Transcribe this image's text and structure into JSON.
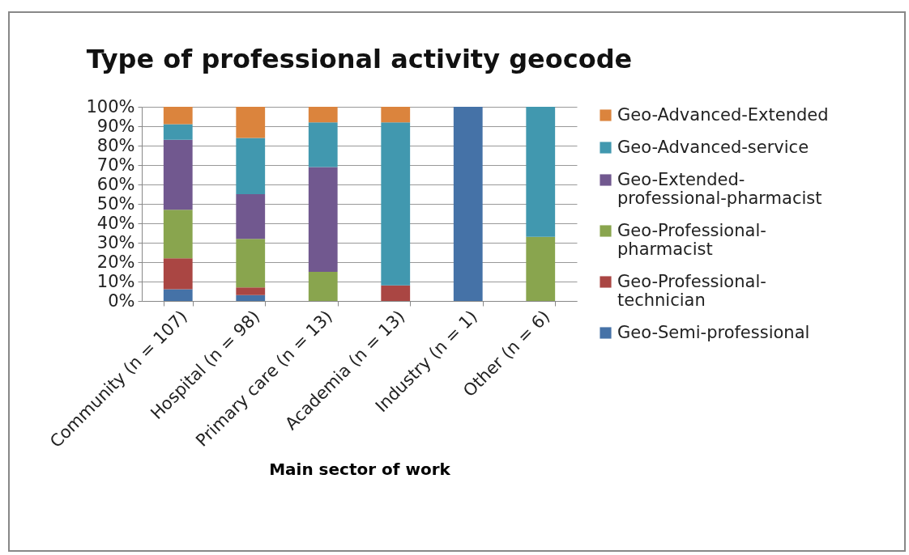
{
  "chart_data": {
    "type": "bar",
    "title": "Type of professional activity geocode",
    "xlabel": "Main sector of work",
    "categories": [
      "Community (n = 107)",
      "Hospital (n = 98)",
      "Primary care (n = 13)",
      "Academia (n = 13)",
      "Industry (n = 1)",
      "Other (n = 6)"
    ],
    "stacked": true,
    "ylim": [
      0,
      100
    ],
    "yticks": [
      {
        "value": 0,
        "label": "0%"
      },
      {
        "value": 10,
        "label": "10%"
      },
      {
        "value": 20,
        "label": "20%"
      },
      {
        "value": 30,
        "label": "30%"
      },
      {
        "value": 40,
        "label": "40%"
      },
      {
        "value": 50,
        "label": "50%"
      },
      {
        "value": 60,
        "label": "60%"
      },
      {
        "value": 70,
        "label": "70%"
      },
      {
        "value": 80,
        "label": "80%"
      },
      {
        "value": 90,
        "label": "90%"
      },
      {
        "value": 100,
        "label": "100%"
      }
    ],
    "grid": "y",
    "legend": "right",
    "series": [
      {
        "name": "Geo-Semi-professional",
        "color": "#4572a7",
        "values": [
          6,
          3,
          0,
          0,
          100,
          0
        ]
      },
      {
        "name": "Geo-Professional-technician",
        "color": "#aa4643",
        "values": [
          16,
          4,
          0,
          8,
          0,
          0
        ]
      },
      {
        "name": "Geo-Professional-pharmacist",
        "color": "#89a54e",
        "values": [
          25,
          25,
          15,
          0,
          0,
          33
        ]
      },
      {
        "name": "Geo-Extended-professional-pharmacist",
        "color": "#71588f",
        "values": [
          36,
          23,
          54,
          0,
          0,
          0
        ]
      },
      {
        "name": "Geo-Advanced-service",
        "color": "#4198af",
        "values": [
          8,
          29,
          23,
          84,
          0,
          67
        ]
      },
      {
        "name": "Geo-Advanced-Extended",
        "color": "#db843d",
        "values": [
          9,
          16,
          8,
          8,
          0,
          0
        ]
      }
    ]
  }
}
